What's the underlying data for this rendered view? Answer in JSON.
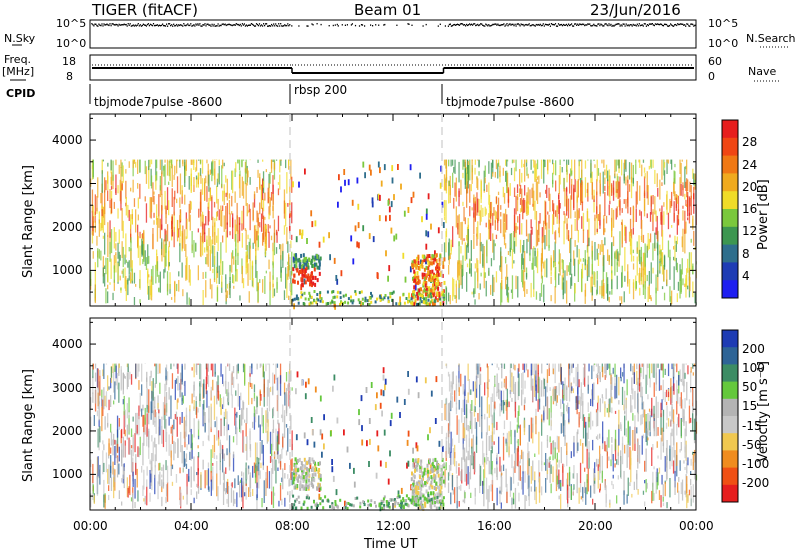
{
  "header": {
    "radar": "TIGER (fitACF)",
    "beam": "Beam 01",
    "date": "23/Jun/2016"
  },
  "top_panels": {
    "nsky_label": "N.Sky",
    "nsky_ticks": [
      "10^5",
      "10^0"
    ],
    "nsearch_label": "N.Search",
    "freq_label": "Freq.",
    "freq_unit": "[MHz]",
    "freq_ticks": [
      "18",
      "8"
    ],
    "nave_ticks": [
      "60",
      "0"
    ],
    "nave_label": "Nave",
    "cpid_label": "CPID",
    "cpid_segments": [
      "tbjmode7pulse -8600",
      "rbsp 200",
      "tbjmode7pulse -8600"
    ]
  },
  "colors": {
    "power": [
      "#1e1ef0",
      "#1e3cb4",
      "#2e6e8c",
      "#3c9650",
      "#7ac83c",
      "#f0dc28",
      "#f0aa1e",
      "#f07814",
      "#f04614",
      "#e61e1e"
    ],
    "velocity": [
      "#e61e1e",
      "#f05014",
      "#f08c1e",
      "#f0c850",
      "#c8c8c8",
      "#b4b4b4",
      "#64c83c",
      "#3c8c64",
      "#2e6496",
      "#1e3cb4"
    ]
  },
  "power_scale": {
    "label": "Power [dB]",
    "ticks": [
      "28",
      "24",
      "20",
      "16",
      "12",
      "8",
      "4"
    ]
  },
  "velocity_scale": {
    "label": "Velocity [m s⁻¹]",
    "ticks": [
      "200",
      "100",
      "50",
      "15",
      "-15",
      "-50",
      "-100",
      "-200"
    ]
  },
  "chart_data": [
    {
      "type": "heatmap",
      "title": "Power",
      "ylabel": "Slant Range [km]",
      "xlabel": "Time UT",
      "xlim": [
        0,
        24
      ],
      "ylim": [
        180,
        4600
      ],
      "x_ticks": [
        "00:00",
        "04:00",
        "08:00",
        "12:00",
        "16:00",
        "20:00",
        "00:00"
      ],
      "y_ticks": [
        "1000",
        "2000",
        "3000",
        "4000"
      ],
      "mode_boundaries_hours": [
        8.0,
        14.0
      ],
      "data_range_km": [
        200,
        3550
      ]
    },
    {
      "type": "heatmap",
      "title": "Velocity",
      "ylabel": "Slant Range [km]",
      "xlabel": "Time UT",
      "xlim": [
        0,
        24
      ],
      "ylim": [
        180,
        4600
      ],
      "x_ticks": [
        "00:00",
        "04:00",
        "08:00",
        "12:00",
        "16:00",
        "20:00",
        "00:00"
      ],
      "y_ticks": [
        "1000",
        "2000",
        "3000",
        "4000"
      ],
      "mode_boundaries_hours": [
        8.0,
        14.0
      ],
      "data_range_km": [
        200,
        3550
      ]
    }
  ]
}
